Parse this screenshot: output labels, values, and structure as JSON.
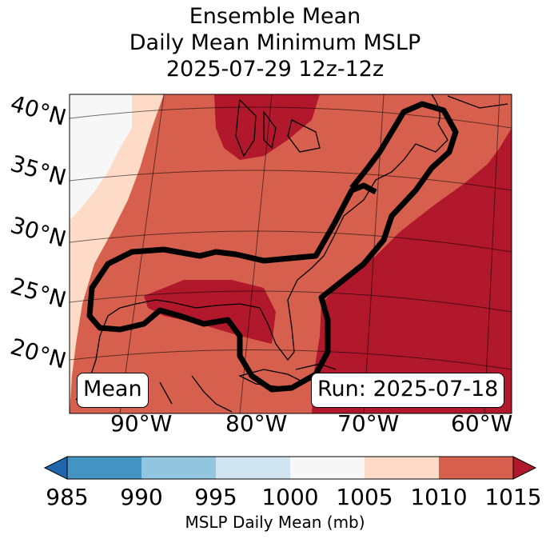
{
  "title": {
    "line1": "Ensemble Mean",
    "line2": "Daily Mean Minimum MSLP",
    "line3": "2025-07-29 12z-12z"
  },
  "map": {
    "lat_labels": [
      "40°N",
      "35°N",
      "30°N",
      "25°N",
      "20°N"
    ],
    "lon_labels": [
      "90°W",
      "80°W",
      "70°W",
      "60°W"
    ],
    "mean_label": "Mean",
    "run_label": "Run: 2025-07-18",
    "regions": [
      {
        "name": "1000-1005 mb",
        "color": "#f7f7f7"
      },
      {
        "name": "1005-1010 mb",
        "color": "#fddbc7"
      },
      {
        "name": "1010-1015 mb",
        "color": "#d6604d"
      },
      {
        "name": ">1015 mb",
        "color": "#b2182b"
      }
    ],
    "contour_color": "#000000"
  },
  "colorbar": {
    "label": "MSLP Daily Mean (mb)",
    "ticks": [
      "985",
      "990",
      "995",
      "1000",
      "1005",
      "1010",
      "1015"
    ],
    "bins": [
      {
        "range": "<985",
        "color": "#2166ac"
      },
      {
        "range": "985-990",
        "color": "#4393c3"
      },
      {
        "range": "990-995",
        "color": "#92c5de"
      },
      {
        "range": "995-1000",
        "color": "#d1e5f0"
      },
      {
        "range": "1000-1005",
        "color": "#f7f7f7"
      },
      {
        "range": "1005-1010",
        "color": "#fddbc7"
      },
      {
        "range": "1010-1015",
        "color": "#d6604d"
      },
      {
        "range": ">1015",
        "color": "#b2182b"
      }
    ]
  }
}
